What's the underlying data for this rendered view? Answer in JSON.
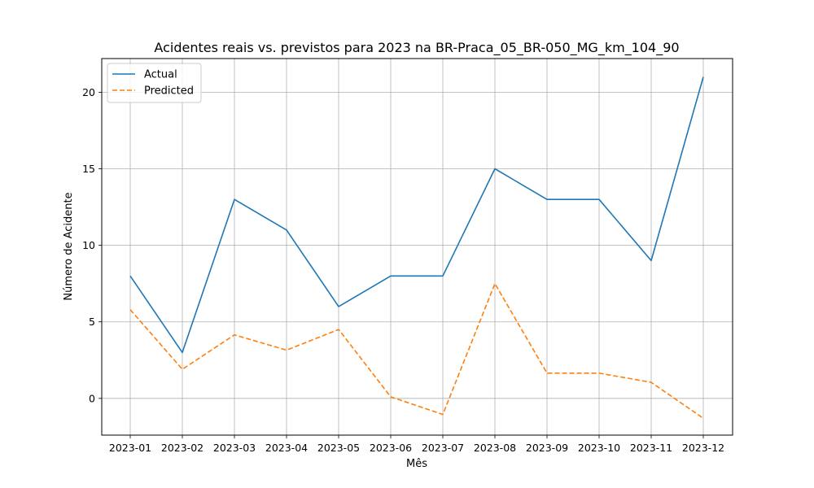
{
  "chart_data": {
    "type": "line",
    "title": "Acidentes reais vs. previstos para 2023 na BR-Praca_05_BR-050_MG_km_104_90",
    "xlabel": "Mês",
    "ylabel": "Número de Acidente",
    "categories": [
      "2023-01",
      "2023-02",
      "2023-03",
      "2023-04",
      "2023-05",
      "2023-06",
      "2023-07",
      "2023-08",
      "2023-09",
      "2023-10",
      "2023-11",
      "2023-12"
    ],
    "series": [
      {
        "name": "Actual",
        "color": "#1f77b4",
        "dash": "solid",
        "values": [
          8,
          3,
          13,
          11,
          6,
          8,
          8,
          15,
          13,
          13,
          9,
          21
        ]
      },
      {
        "name": "Predicted",
        "color": "#ff7f0e",
        "dash": "dashed",
        "values": [
          5.8,
          1.9,
          4.15,
          3.15,
          4.5,
          0.1,
          -1.05,
          7.5,
          1.65,
          1.65,
          1.05,
          -1.3
        ]
      }
    ],
    "ylim": [
      -2.4,
      22.2
    ],
    "yticks": [
      0,
      5,
      10,
      15,
      20
    ],
    "grid": true,
    "legend": "top-left"
  }
}
